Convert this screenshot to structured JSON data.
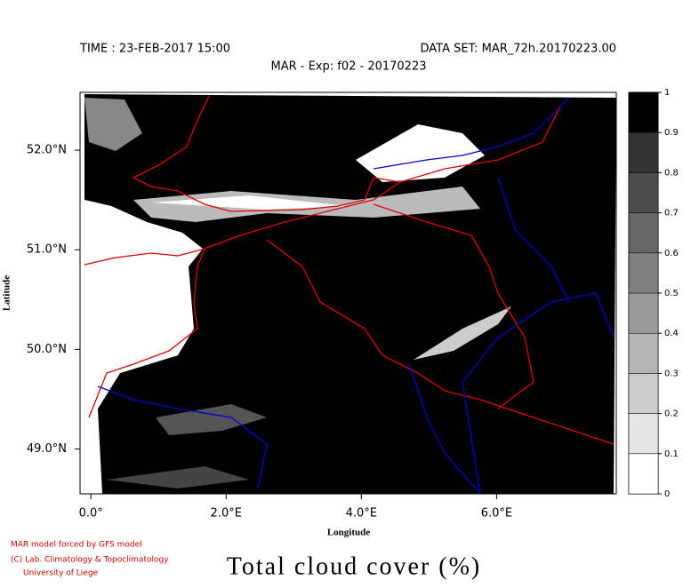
{
  "header": {
    "time": "TIME : 23-FEB-2017 15:00",
    "dataset": "DATA SET: MAR_72h.20170223.00",
    "subtitle": "MAR - Exp: f02 - 20170223"
  },
  "map": {
    "x_label": "Longitude",
    "y_label": "Latitude",
    "xlim": [
      -0.16,
      7.77
    ],
    "ylim": [
      48.55,
      52.58
    ],
    "xticks": [
      {
        "value": 0,
        "label": "0.0°"
      },
      {
        "value": 2,
        "label": "2.0°E"
      },
      {
        "value": 4,
        "label": "4.0°E"
      },
      {
        "value": 6,
        "label": "6.0°E"
      }
    ],
    "yticks": [
      {
        "value": 49,
        "label": "49.0°N"
      },
      {
        "value": 50,
        "label": "50.0°N"
      },
      {
        "value": 51,
        "label": "51.0°N"
      },
      {
        "value": 52,
        "label": "52.0°N"
      }
    ]
  },
  "colorbar": {
    "ticks": [
      0,
      0.1,
      0.2,
      0.3,
      0.4,
      0.5,
      0.6,
      0.7,
      0.8,
      0.9,
      1
    ],
    "colors": [
      "#ffffff",
      "#e6e6e6",
      "#cccccc",
      "#b4b4b4",
      "#9a9a9a",
      "#808080",
      "#666666",
      "#4c4c4c",
      "#333333",
      "#000000"
    ]
  },
  "footer": {
    "line1": "MAR model forced by GFS model",
    "line2": "(C) Lab. Climatology & Topoclimatology",
    "line3": "University of Liege"
  },
  "title": "Total cloud cover (%)"
}
